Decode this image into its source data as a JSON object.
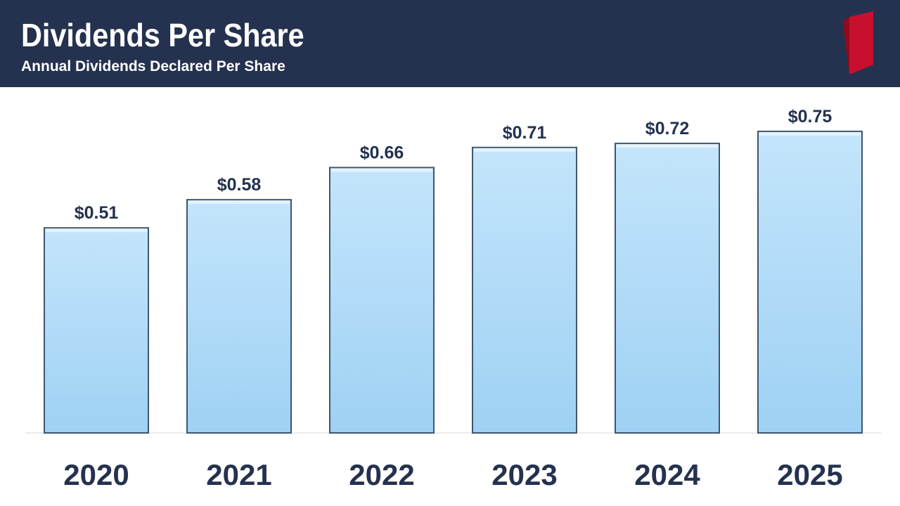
{
  "header": {
    "title": "Dividends Per Share",
    "subtitle": "Annual Dividends Declared Per Share",
    "background_color": "#24324f",
    "logo_color": "#c8102e"
  },
  "chart_data": {
    "type": "bar",
    "title": "Dividends Per Share",
    "subtitle": "Annual Dividends Declared Per Share",
    "categories": [
      "2020",
      "2021",
      "2022",
      "2023",
      "2024",
      "2025"
    ],
    "values": [
      0.51,
      0.58,
      0.66,
      0.71,
      0.72,
      0.75
    ],
    "data_labels": [
      "$0.51",
      "$0.58",
      "$0.66",
      "$0.71",
      "$0.72",
      "$0.75"
    ],
    "xlabel": "",
    "ylabel": "",
    "ylim": [
      0,
      0.86
    ],
    "grid": false,
    "legend": "none",
    "bar_color_top": "#c4e5fb",
    "bar_color_bottom": "#9ed1f4",
    "label_color": "#24324f"
  }
}
